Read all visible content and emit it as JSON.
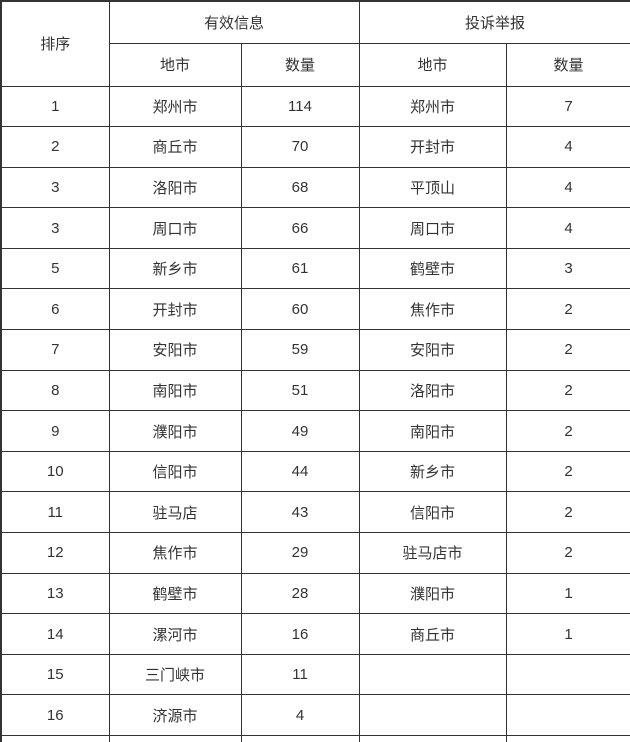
{
  "page": {
    "background_color": "#ffffff",
    "border_color": "#333333",
    "text_color": "#333333"
  },
  "table": {
    "headers": {
      "rank": "排序",
      "valid_info_group": "有效信息",
      "complaint_group": "投诉举报",
      "city": "地市",
      "count": "数量"
    },
    "rows": [
      {
        "rank": "1",
        "valid_city": "郑州市",
        "valid_count": "114",
        "complaint_city": "郑州市",
        "complaint_count": "7"
      },
      {
        "rank": "2",
        "valid_city": "商丘市",
        "valid_count": "70",
        "complaint_city": "开封市",
        "complaint_count": "4"
      },
      {
        "rank": "3",
        "valid_city": "洛阳市",
        "valid_count": "68",
        "complaint_city": "平顶山",
        "complaint_count": "4"
      },
      {
        "rank": "3",
        "valid_city": "周口市",
        "valid_count": "66",
        "complaint_city": "周口市",
        "complaint_count": "4"
      },
      {
        "rank": "5",
        "valid_city": "新乡市",
        "valid_count": "61",
        "complaint_city": "鹤壁市",
        "complaint_count": "3"
      },
      {
        "rank": "6",
        "valid_city": "开封市",
        "valid_count": "60",
        "complaint_city": "焦作市",
        "complaint_count": "2"
      },
      {
        "rank": "7",
        "valid_city": "安阳市",
        "valid_count": "59",
        "complaint_city": "安阳市",
        "complaint_count": "2"
      },
      {
        "rank": "8",
        "valid_city": "南阳市",
        "valid_count": "51",
        "complaint_city": "洛阳市",
        "complaint_count": "2"
      },
      {
        "rank": "9",
        "valid_city": "濮阳市",
        "valid_count": "49",
        "complaint_city": "南阳市",
        "complaint_count": "2"
      },
      {
        "rank": "10",
        "valid_city": "信阳市",
        "valid_count": "44",
        "complaint_city": "新乡市",
        "complaint_count": "2"
      },
      {
        "rank": "11",
        "valid_city": "驻马店",
        "valid_count": "43",
        "complaint_city": "信阳市",
        "complaint_count": "2"
      },
      {
        "rank": "12",
        "valid_city": "焦作市",
        "valid_count": "29",
        "complaint_city": "驻马店市",
        "complaint_count": "2"
      },
      {
        "rank": "13",
        "valid_city": "鹤壁市",
        "valid_count": "28",
        "complaint_city": "濮阳市",
        "complaint_count": "1"
      },
      {
        "rank": "14",
        "valid_city": "漯河市",
        "valid_count": "16",
        "complaint_city": "商丘市",
        "complaint_count": "1"
      },
      {
        "rank": "15",
        "valid_city": "三门峡市",
        "valid_count": "11",
        "complaint_city": "",
        "complaint_count": ""
      },
      {
        "rank": "16",
        "valid_city": "济源市",
        "valid_count": "4",
        "complaint_city": "",
        "complaint_count": ""
      }
    ]
  }
}
